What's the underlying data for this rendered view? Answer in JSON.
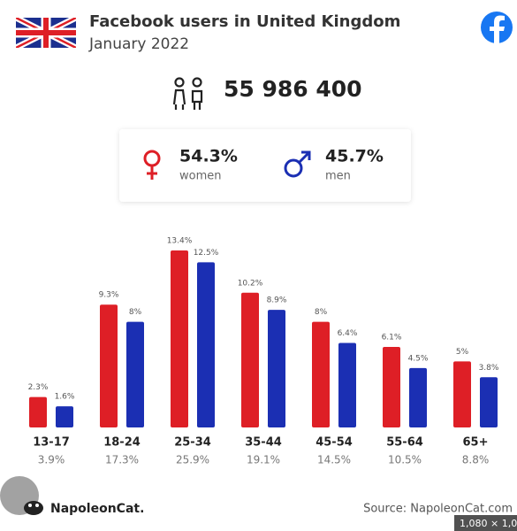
{
  "header": {
    "title": "Facebook users in United Kingdom",
    "subtitle": "January 2022",
    "total": "55 986 400"
  },
  "chart_data": {
    "type": "bar",
    "categories": [
      "13-17",
      "18-24",
      "25-34",
      "35-44",
      "45-54",
      "55-64",
      "65+"
    ],
    "category_shares": [
      3.9,
      17.3,
      25.9,
      19.1,
      14.5,
      10.5,
      8.8
    ],
    "category_share_labels": [
      "3.9%",
      "17.3%",
      "25.9%",
      "19.1%",
      "14.5%",
      "10.5%",
      "8.8%"
    ],
    "series": [
      {
        "name": "women",
        "color": "#de1f26",
        "total_label": "54.3%",
        "values": [
          2.3,
          9.3,
          13.4,
          10.2,
          8,
          6.1,
          5
        ],
        "value_labels": [
          "2.3%",
          "9.3%",
          "13.4%",
          "10.2%",
          "8%",
          "6.1%",
          "5%"
        ]
      },
      {
        "name": "men",
        "color": "#1b2fb3",
        "total_label": "45.7%",
        "values": [
          1.6,
          8,
          12.5,
          8.9,
          6.4,
          4.5,
          3.8
        ],
        "value_labels": [
          "1.6%",
          "8%",
          "12.5%",
          "8.9%",
          "6.4%",
          "4.5%",
          "3.8%"
        ]
      }
    ]
  },
  "footer": {
    "brand": "NapoleonCat.",
    "source": "Source: NapoleonCat.com",
    "overlay": "1,080 × 1,0"
  }
}
